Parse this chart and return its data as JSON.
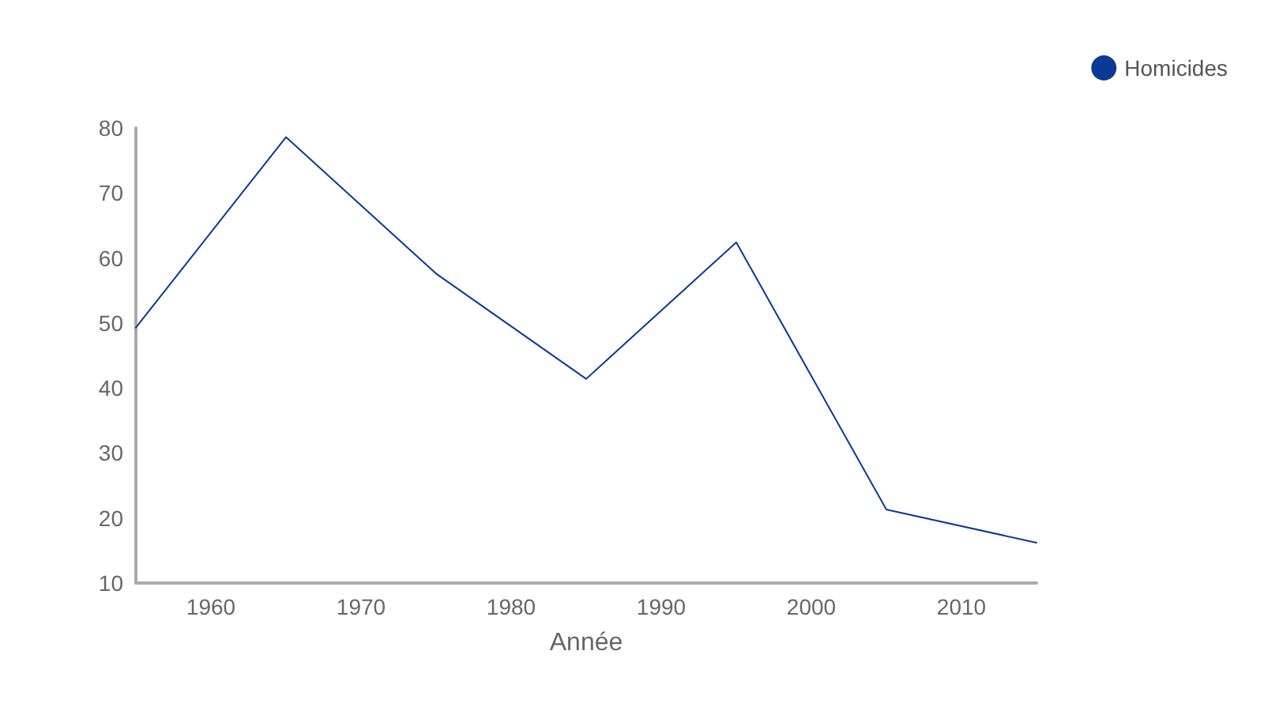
{
  "chart_data": {
    "type": "line",
    "xlabel": "Année",
    "x": [
      1955,
      1965,
      1975,
      1985,
      1995,
      2005,
      2015
    ],
    "series": [
      {
        "name": "Homicides",
        "color": "#0b3a94",
        "values": [
          49.3,
          78.6,
          57.6,
          41.4,
          62.4,
          21.3,
          16.2
        ]
      }
    ],
    "xlim": [
      1955,
      2015
    ],
    "xticks": [
      1960,
      1970,
      1980,
      1990,
      2000,
      2010
    ],
    "ylim": [
      10,
      80
    ],
    "yticks": [
      10,
      20,
      30,
      40,
      50,
      60,
      70,
      80
    ],
    "grid": false,
    "legend": "top right",
    "marker": "none",
    "line_style": "solid"
  }
}
